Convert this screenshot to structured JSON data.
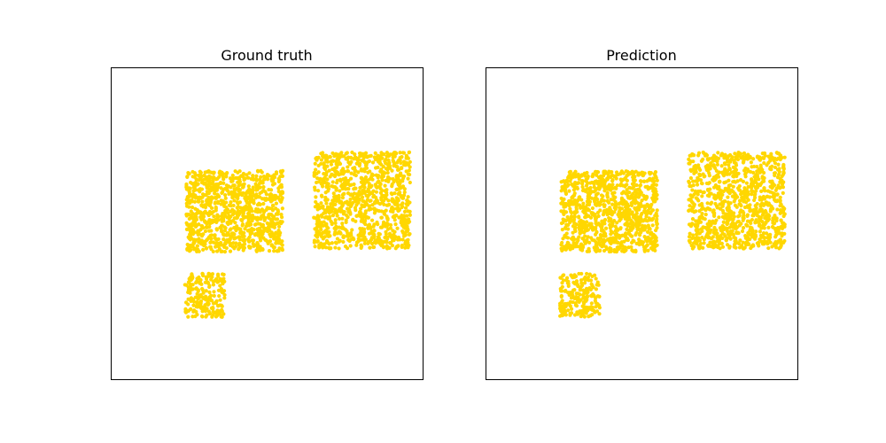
{
  "figure": {
    "marker_color": "#ffd700",
    "frame_color": "#000000"
  },
  "chart_data": [
    {
      "type": "scatter",
      "title": "Ground truth",
      "xlim": [
        0,
        1
      ],
      "ylim": [
        0,
        1
      ],
      "grid": false,
      "axis_ticks": false,
      "clusters": [
        {
          "x_range": [
            0.24,
            0.55
          ],
          "y_range": [
            0.41,
            0.67
          ],
          "points": 1000
        },
        {
          "x_range": [
            0.65,
            0.96
          ],
          "y_range": [
            0.42,
            0.73
          ],
          "points": 1000
        },
        {
          "x_range": [
            0.235,
            0.365
          ],
          "y_range": [
            0.2,
            0.34
          ],
          "points": 200
        }
      ]
    },
    {
      "type": "scatter",
      "title": "Prediction",
      "xlim": [
        0,
        1
      ],
      "ylim": [
        0,
        1
      ],
      "grid": false,
      "axis_ticks": false,
      "clusters": [
        {
          "x_range": [
            0.24,
            0.55
          ],
          "y_range": [
            0.41,
            0.67
          ],
          "points": 1000
        },
        {
          "x_range": [
            0.65,
            0.96
          ],
          "y_range": [
            0.42,
            0.73
          ],
          "points": 1000
        },
        {
          "x_range": [
            0.235,
            0.365
          ],
          "y_range": [
            0.2,
            0.34
          ],
          "points": 200
        }
      ]
    }
  ]
}
